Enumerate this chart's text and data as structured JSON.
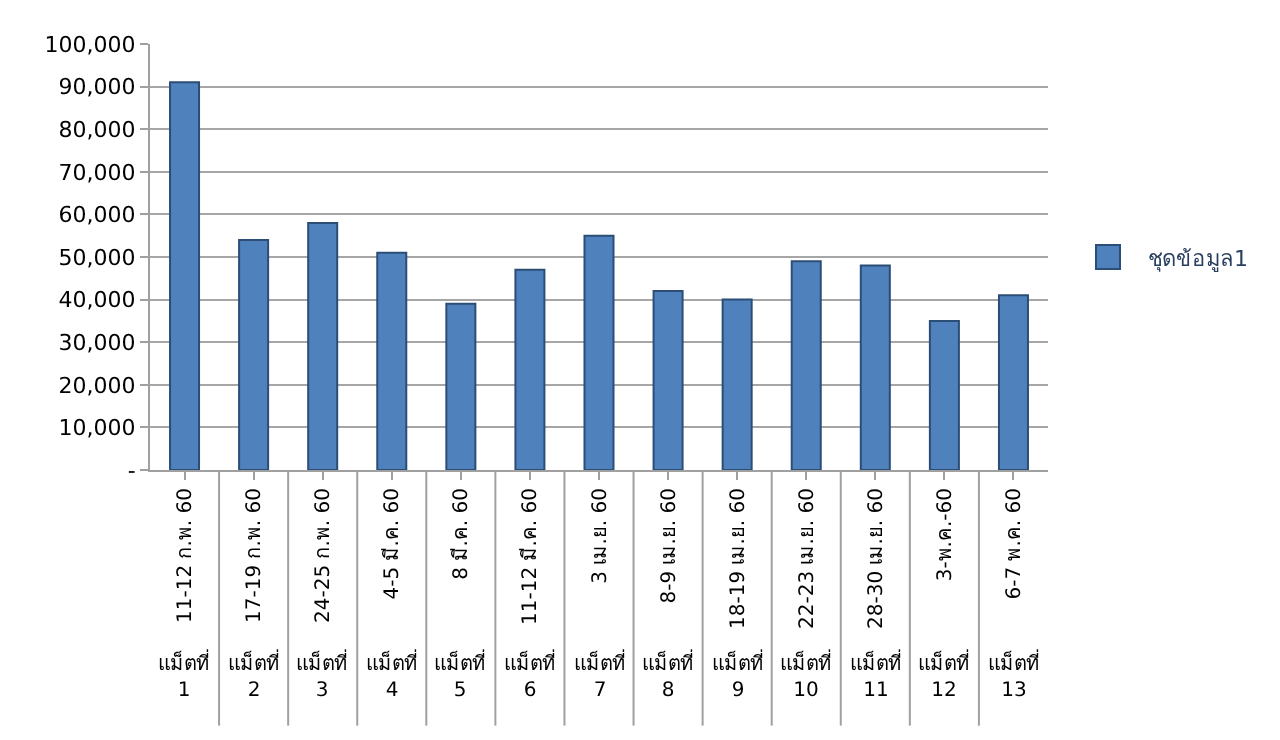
{
  "chart_data": {
    "type": "bar",
    "categories": [
      "11-12 ก.พ. 60",
      "17-19 ก.พ. 60",
      "24-25 ก.พ. 60",
      "4-5 มี.ค. 60",
      "8 มี.ค. 60",
      "11-12 มี.ค. 60",
      "3 เม.ย. 60",
      "8-9 เม.ย. 60",
      "18-19 เม.ย. 60",
      "22-23 เม.ย. 60",
      "28-30 เม.ย. 60",
      "3-พ.ค.-60",
      "6-7 พ.ค. 60"
    ],
    "series": [
      {
        "name": "ชุดข้อมูล1",
        "color": "#4f81bd",
        "values": [
          91000,
          54000,
          58000,
          51000,
          39000,
          47000,
          55000,
          42000,
          40000,
          49000,
          48000,
          35000,
          41000
        ]
      }
    ],
    "ylim": [
      0,
      100000
    ],
    "yticks": [
      {
        "value": 0,
        "label": "-"
      },
      {
        "value": 10000,
        "label": "10,000"
      },
      {
        "value": 20000,
        "label": "20,000"
      },
      {
        "value": 30000,
        "label": "30,000"
      },
      {
        "value": 40000,
        "label": "40,000"
      },
      {
        "value": 50000,
        "label": "50,000"
      },
      {
        "value": 60000,
        "label": "60,000"
      },
      {
        "value": 70000,
        "label": "70,000"
      },
      {
        "value": 80000,
        "label": "80,000"
      },
      {
        "value": 90000,
        "label": "90,000"
      },
      {
        "value": 100000,
        "label": "100,000"
      }
    ],
    "annotations": [
      "แม็ตที่ 1",
      "แม็ตที่ 2",
      "แม็ตที่ 3",
      "แม็ตที่ 4",
      "แม็ตที่ 5",
      "แม็ตที่ 6",
      "แม็ตที่ 7",
      "แม็ตที่ 8",
      "แม็ตที่ 9",
      "แม็ตที่ 10",
      "แม็ตที่ 11",
      "แม็ตที่ 12",
      "แม็ตที่ 13"
    ],
    "grid": "y",
    "legend": "right"
  }
}
